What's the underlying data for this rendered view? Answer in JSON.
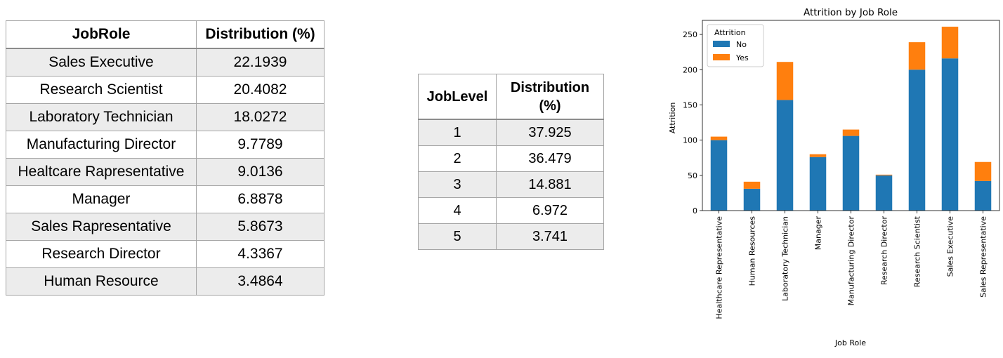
{
  "jobrole_table": {
    "headers": [
      "JobRole",
      "Distribution (%)"
    ],
    "rows": [
      [
        "Sales Executive",
        "22.1939"
      ],
      [
        "Research Scientist",
        "20.4082"
      ],
      [
        "Laboratory Technician",
        "18.0272"
      ],
      [
        "Manufacturing Director",
        "9.7789"
      ],
      [
        "Healtcare Rapresentative",
        "9.0136"
      ],
      [
        "Manager",
        "6.8878"
      ],
      [
        "Sales Rapresentative",
        "5.8673"
      ],
      [
        "Research Director",
        "4.3367"
      ],
      [
        "Human Resource",
        "3.4864"
      ]
    ]
  },
  "joblevel_table": {
    "headers": [
      "JobLevel",
      "Distribution (%)"
    ],
    "rows": [
      [
        "1",
        "37.925"
      ],
      [
        "2",
        "36.479"
      ],
      [
        "3",
        "14.881"
      ],
      [
        "4",
        "6.972"
      ],
      [
        "5",
        "3.741"
      ]
    ]
  },
  "chart_data": {
    "type": "bar",
    "stacked": true,
    "title": "Attrition by Job Role",
    "xlabel": "Job Role",
    "ylabel": "Attrition",
    "categories": [
      "Healthcare Representative",
      "Human Resources",
      "Laboratory Technician",
      "Manager",
      "Manufacturing Director",
      "Research Director",
      "Research Scientist",
      "Sales Executive",
      "Sales Representative"
    ],
    "series": [
      {
        "name": "No",
        "color": "#1f77b4",
        "values": [
          100,
          31,
          157,
          76,
          106,
          50,
          200,
          216,
          42
        ]
      },
      {
        "name": "Yes",
        "color": "#ff7f0e",
        "values": [
          5,
          10,
          54,
          4,
          9,
          1,
          39,
          45,
          27
        ]
      }
    ],
    "ylim": [
      0,
      270
    ],
    "yticks": [
      0,
      50,
      100,
      150,
      200,
      250
    ],
    "legend": {
      "title": "Attrition",
      "position": "top-left"
    },
    "grid": false
  }
}
